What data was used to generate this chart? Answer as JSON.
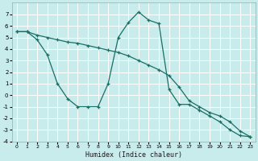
{
  "xlabel": "Humidex (Indice chaleur)",
  "background_color": "#c8ecec",
  "grid_color": "#b0d8d8",
  "line_color": "#1a6e64",
  "ylim": [
    -4,
    8
  ],
  "xlim": [
    -0.5,
    23.5
  ],
  "line1_x": [
    0,
    1,
    2,
    3,
    4,
    5,
    6,
    7,
    8,
    9,
    10,
    11,
    12,
    13,
    14,
    15,
    16,
    17,
    18,
    19,
    20,
    21,
    22,
    23
  ],
  "line1_y": [
    5.5,
    5.5,
    4.8,
    3.5,
    1.0,
    -0.3,
    -1.0,
    -1.0,
    -1.0,
    1.0,
    5.0,
    6.3,
    7.2,
    6.5,
    6.2,
    0.5,
    -0.8,
    -0.8,
    -1.3,
    -1.8,
    -2.3,
    -3.0,
    -3.5,
    -3.6
  ],
  "line2_x": [
    0,
    1,
    2,
    3,
    4,
    5,
    6,
    7,
    8,
    9,
    10,
    11,
    12,
    13,
    14,
    15,
    16,
    17,
    18,
    19,
    20,
    21,
    22,
    23
  ],
  "line2_y": [
    5.5,
    5.5,
    5.2,
    5.0,
    4.8,
    4.6,
    4.5,
    4.3,
    4.1,
    3.9,
    3.7,
    3.4,
    3.0,
    2.6,
    2.2,
    1.7,
    0.7,
    -0.5,
    -1.0,
    -1.5,
    -1.8,
    -2.3,
    -3.1,
    -3.6
  ],
  "yticks": [
    -4,
    -3,
    -2,
    -1,
    0,
    1,
    2,
    3,
    4,
    5,
    6,
    7
  ],
  "xticks": [
    0,
    1,
    2,
    3,
    4,
    5,
    6,
    7,
    8,
    9,
    10,
    11,
    12,
    13,
    14,
    15,
    16,
    17,
    18,
    19,
    20,
    21,
    22,
    23
  ],
  "figsize": [
    3.2,
    2.0
  ],
  "dpi": 100
}
